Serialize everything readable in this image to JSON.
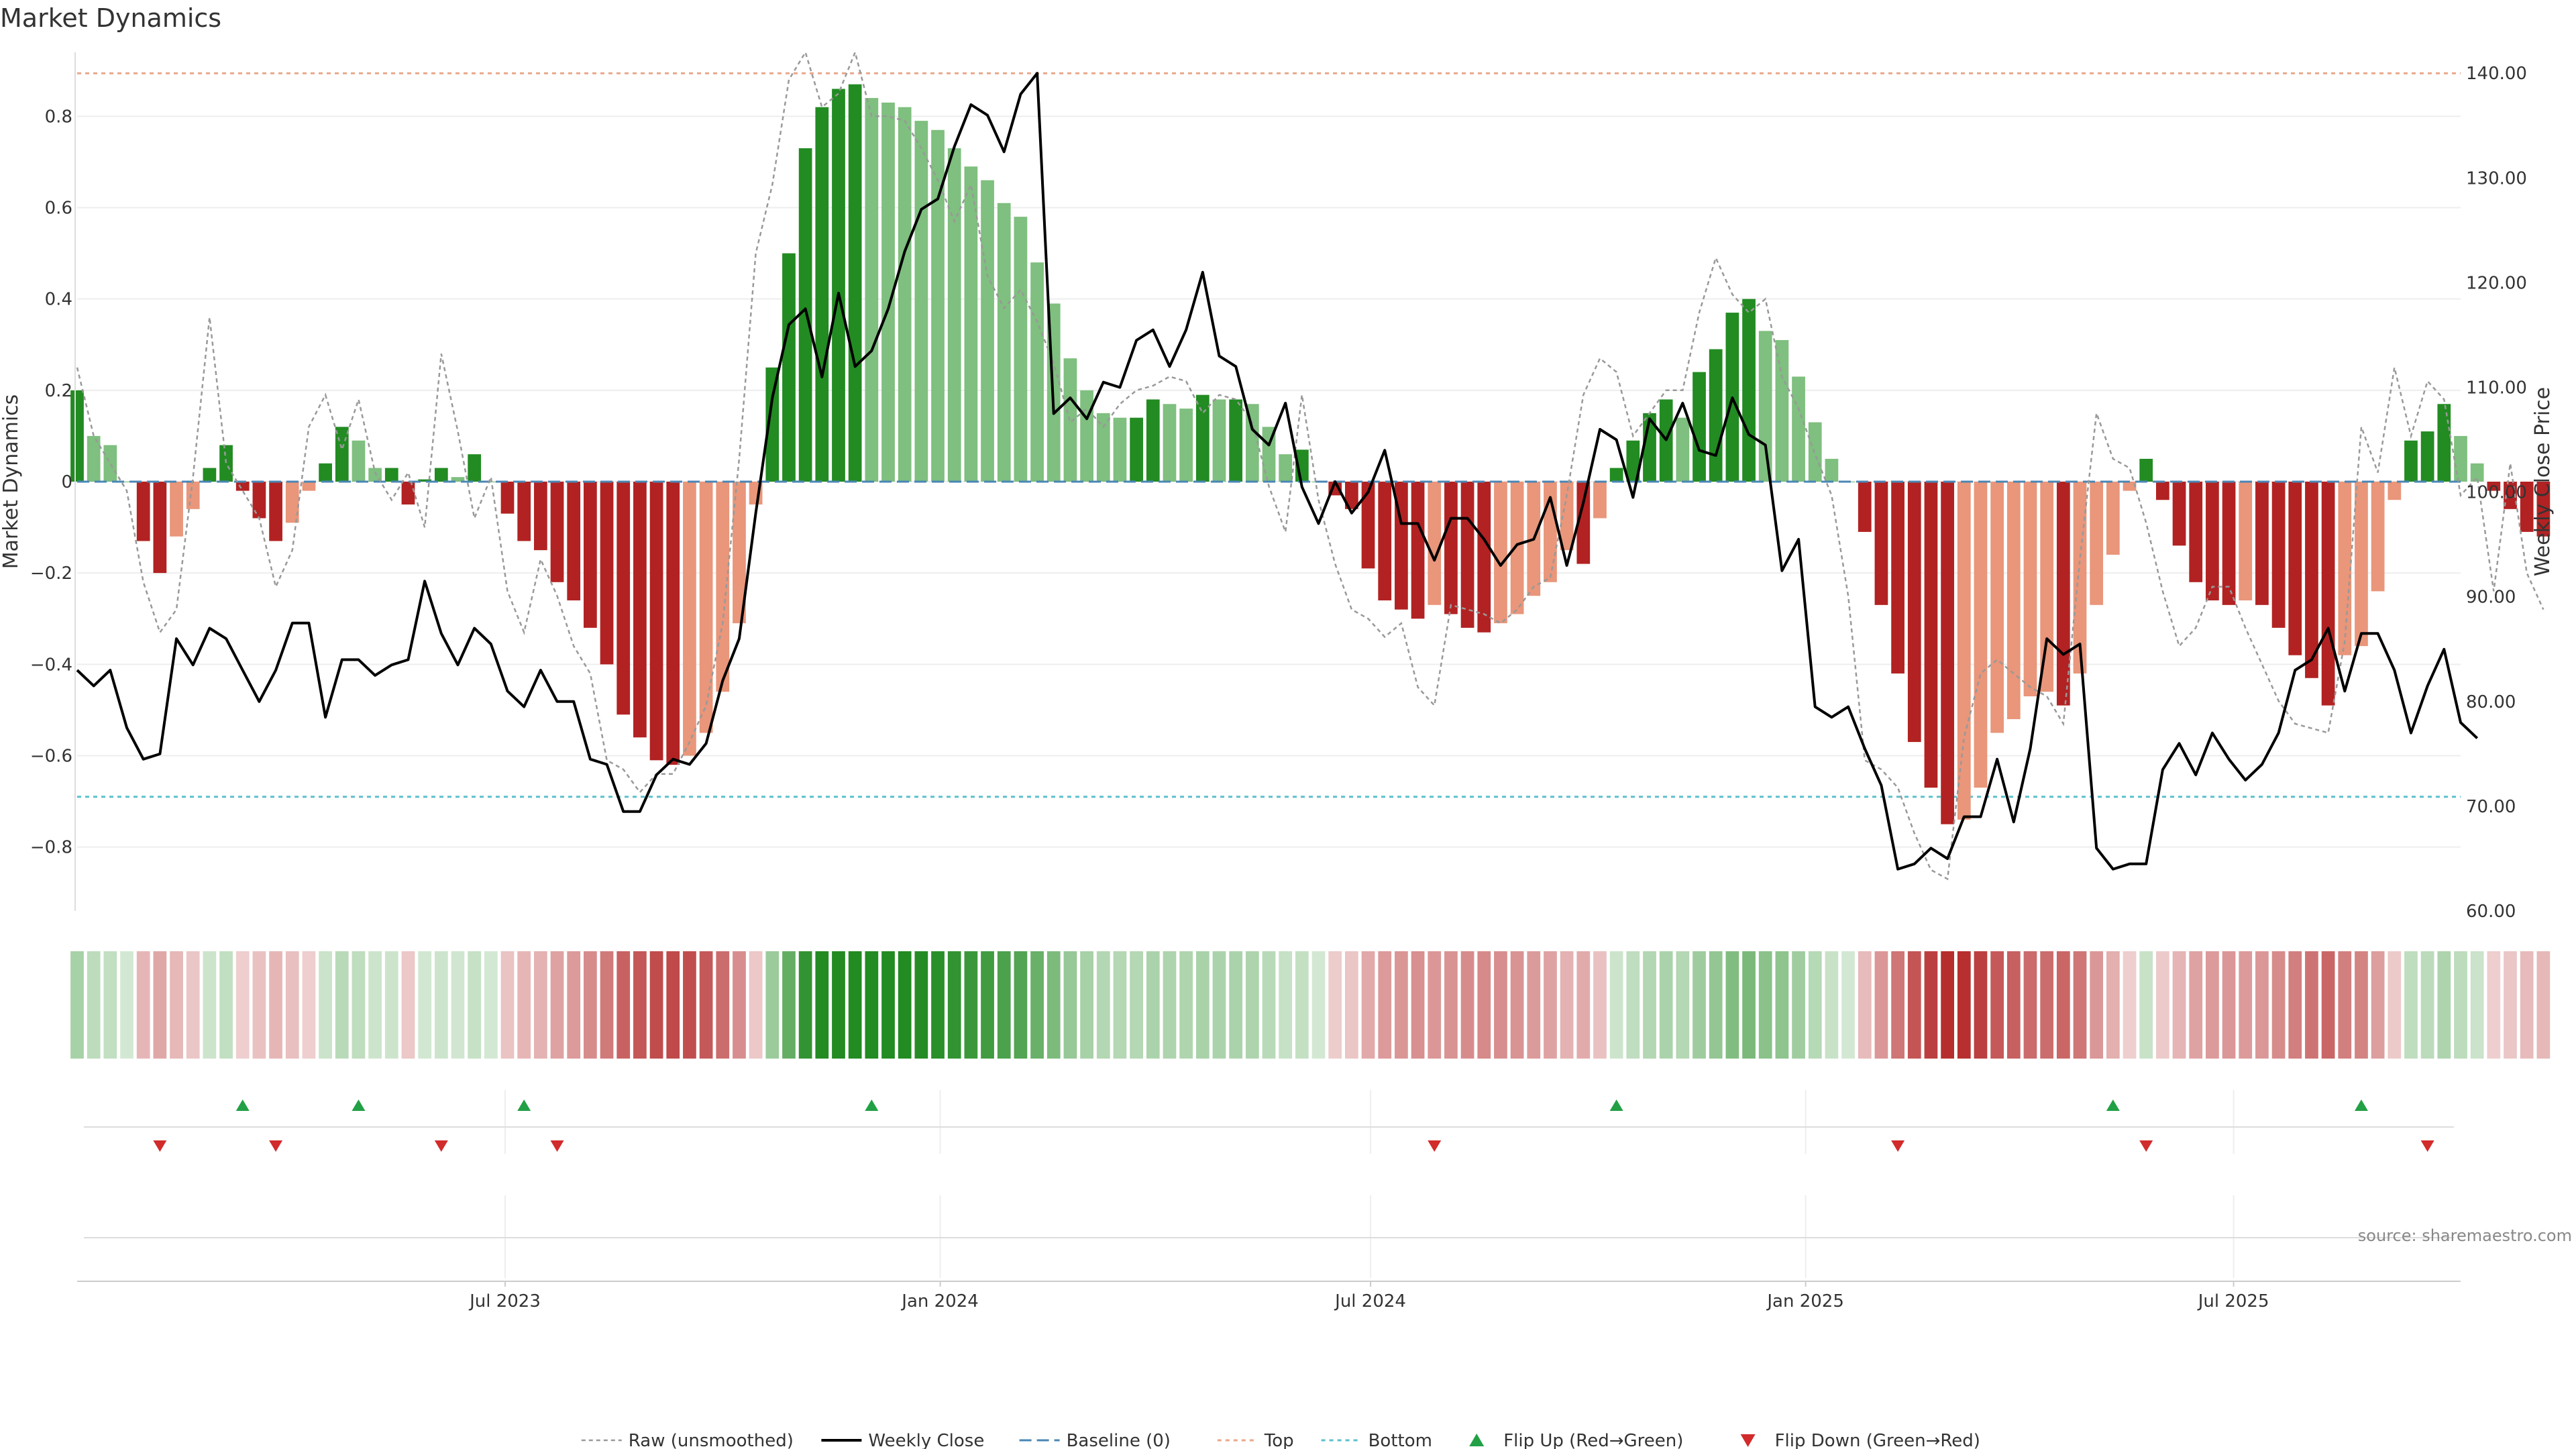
{
  "chart_data": {
    "type": "bar",
    "title": "Market Dynamics",
    "ylabel": "Market Dynamics",
    "y2label": "Weekly Close Price",
    "ylim": [
      -0.94,
      0.94
    ],
    "y2lim": [
      60,
      142
    ],
    "yticks": [
      -0.8,
      -0.6,
      -0.4,
      -0.2,
      0,
      0.2,
      0.4,
      0.6,
      0.8
    ],
    "ytick_labels": [
      "−0.8",
      "−0.6",
      "−0.4",
      "−0.2",
      "0",
      "0.2",
      "0.4",
      "0.6",
      "0.8"
    ],
    "y2ticks": [
      60,
      70,
      80,
      90,
      100,
      110,
      120,
      130,
      140
    ],
    "y2tick_labels": [
      "60.00",
      "70.00",
      "80.00",
      "90.00",
      "100.00",
      "110.00",
      "120.00",
      "130.00",
      "140.00"
    ],
    "x_range": [
      "2023-01-01",
      "2025-10-05"
    ],
    "xticks": [
      {
        "date": "2023-07-01",
        "label": "Jul 2023"
      },
      {
        "date": "2024-01-01",
        "label": "Jan 2024"
      },
      {
        "date": "2024-07-01",
        "label": "Jul 2024"
      },
      {
        "date": "2025-01-01",
        "label": "Jan 2025"
      },
      {
        "date": "2025-07-01",
        "label": "Jul 2025"
      }
    ],
    "top_level": 140,
    "bottom_level": -0.69,
    "baseline": 0,
    "first_week": "2023-01-01",
    "smoothed": [
      0.2,
      0.1,
      0.08,
      0,
      -0.13,
      -0.2,
      -0.12,
      -0.06,
      0.03,
      0.08,
      -0.02,
      -0.08,
      -0.13,
      -0.09,
      -0.02,
      0.04,
      0.12,
      0.09,
      0.03,
      0.03,
      -0.05,
      0.005,
      0.03,
      0.01,
      0.06,
      0,
      -0.07,
      -0.13,
      -0.15,
      -0.22,
      -0.26,
      -0.32,
      -0.4,
      -0.51,
      -0.56,
      -0.61,
      -0.62,
      -0.6,
      -0.55,
      -0.46,
      -0.31,
      -0.05,
      0.25,
      0.5,
      0.73,
      0.82,
      0.86,
      0.87,
      0.84,
      0.83,
      0.82,
      0.79,
      0.77,
      0.73,
      0.69,
      0.66,
      0.61,
      0.58,
      0.48,
      0.39,
      0.27,
      0.2,
      0.15,
      0.14,
      0.14,
      0.18,
      0.17,
      0.16,
      0.19,
      0.18,
      0.18,
      0.17,
      0.12,
      0.06,
      0.07,
      0,
      -0.03,
      -0.06,
      -0.19,
      -0.26,
      -0.28,
      -0.3,
      -0.27,
      -0.29,
      -0.32,
      -0.33,
      -0.31,
      -0.29,
      -0.25,
      -0.22,
      -0.15,
      -0.18,
      -0.08,
      0.03,
      0.09,
      0.15,
      0.18,
      0.14,
      0.24,
      0.29,
      0.37,
      0.4,
      0.33,
      0.31,
      0.23,
      0.13,
      0.05,
      0,
      -0.11,
      -0.27,
      -0.42,
      -0.57,
      -0.67,
      -0.75,
      -0.74,
      -0.67,
      -0.55,
      -0.52,
      -0.47,
      -0.46,
      -0.49,
      -0.42,
      -0.27,
      -0.16,
      -0.02,
      0.05,
      -0.04,
      -0.14,
      -0.22,
      -0.26,
      -0.27,
      -0.26,
      -0.27,
      -0.32,
      -0.38,
      -0.43,
      -0.49,
      -0.38,
      -0.36,
      -0.24,
      -0.04,
      0.09,
      0.11,
      0.17,
      0.1,
      0.04,
      -0.02,
      -0.06,
      -0.11,
      -0.12
    ],
    "raw": [
      0.25,
      0.1,
      0.04,
      -0.02,
      -0.22,
      -0.33,
      -0.28,
      0.01,
      0.36,
      0.04,
      -0.02,
      -0.08,
      -0.23,
      -0.15,
      0.12,
      0.19,
      0.07,
      0.18,
      0.02,
      -0.04,
      0.02,
      -0.1,
      0.28,
      0.11,
      -0.08,
      0.01,
      -0.24,
      -0.33,
      -0.17,
      -0.25,
      -0.36,
      -0.42,
      -0.61,
      -0.63,
      -0.68,
      -0.64,
      -0.64,
      -0.57,
      -0.49,
      -0.31,
      0.05,
      0.5,
      0.65,
      0.88,
      0.94,
      0.82,
      0.85,
      0.94,
      0.8,
      0.8,
      0.79,
      0.73,
      0.66,
      0.57,
      0.65,
      0.45,
      0.38,
      0.42,
      0.35,
      0.26,
      0.13,
      0.16,
      0.12,
      0.17,
      0.2,
      0.21,
      0.23,
      0.22,
      0.15,
      0.19,
      0.18,
      0.13,
      -0.01,
      -0.11,
      0.19,
      -0.04,
      -0.18,
      -0.28,
      -0.3,
      -0.34,
      -0.31,
      -0.45,
      -0.49,
      -0.27,
      -0.28,
      -0.29,
      -0.31,
      -0.28,
      -0.23,
      -0.21,
      -0.03,
      0.19,
      0.27,
      0.24,
      0.1,
      0.15,
      0.2,
      0.2,
      0.37,
      0.49,
      0.41,
      0.37,
      0.4,
      0.23,
      0.16,
      0.06,
      -0.03,
      -0.25,
      -0.61,
      -0.63,
      -0.67,
      -0.77,
      -0.85,
      -0.87,
      -0.56,
      -0.42,
      -0.39,
      -0.42,
      -0.45,
      -0.47,
      -0.53,
      -0.17,
      0.15,
      0.05,
      0.03,
      -0.09,
      -0.24,
      -0.36,
      -0.32,
      -0.23,
      -0.23,
      -0.32,
      -0.4,
      -0.48,
      -0.53,
      -0.54,
      -0.55,
      -0.35,
      0.12,
      0.02,
      0.25,
      0.1,
      0.22,
      0.18,
      -0.03,
      0.01,
      -0.24,
      0.04,
      -0.2,
      -0.28
    ],
    "close": [
      83,
      81.5,
      83,
      77.5,
      74.5,
      75,
      86,
      83.5,
      87,
      86,
      83,
      80,
      83,
      87.5,
      87.5,
      78.5,
      84,
      84,
      82.5,
      83.5,
      84,
      91.5,
      86.5,
      83.5,
      87,
      85.5,
      81,
      79.5,
      83,
      80,
      80,
      74.5,
      74,
      69.5,
      69.5,
      73,
      74.5,
      74,
      76,
      82,
      86,
      98,
      109,
      116,
      117.5,
      111,
      119,
      112,
      113.5,
      117.5,
      123,
      127,
      128,
      133,
      137,
      136,
      132.5,
      138,
      140,
      107.5,
      109,
      107,
      110.5,
      110,
      114.5,
      115.5,
      112,
      115.5,
      121,
      113,
      112,
      106,
      104.5,
      108.5,
      100.5,
      97,
      101,
      98,
      100,
      104,
      97,
      97,
      93.5,
      97.5,
      97.5,
      95.5,
      93,
      95,
      95.5,
      99.5,
      93,
      99,
      106,
      105,
      99.5,
      107,
      105,
      108.5,
      104,
      103.5,
      109,
      105.5,
      104.5,
      92.5,
      95.5,
      79.5,
      78.5,
      79.5,
      75.5,
      72,
      64,
      64.5,
      66,
      65,
      69,
      69,
      74.5,
      68.5,
      75.5,
      86,
      84.5,
      85.5,
      66,
      64,
      64.5,
      64.5,
      73.5,
      76,
      73,
      77,
      74.5,
      72.5,
      74,
      77,
      83,
      84,
      87,
      81,
      86.5,
      86.5,
      83,
      77,
      81.5,
      85,
      78,
      76.5
    ],
    "flips_up": [
      "2023-03-12",
      "2023-04-30",
      "2023-07-09",
      "2023-12-03",
      "2024-10-13",
      "2025-05-11",
      "2025-08-24"
    ],
    "flips_down": [
      "2023-02-05",
      "2023-03-26",
      "2023-06-04",
      "2023-07-23",
      "2024-07-28",
      "2025-02-09",
      "2025-05-25",
      "2025-09-21"
    ],
    "colors": {
      "strong_green": "#228b22",
      "light_green": "#7fbf7f",
      "strong_red": "#b22222",
      "light_red": "#e9967a",
      "raw_line": "#999999",
      "close_line": "#000000",
      "baseline": "#4a86b4",
      "top": "#e8a88a",
      "bottom": "#5cc0cc",
      "flip_up": "#22a045",
      "flip_down": "#d22b2b"
    },
    "legend": [
      {
        "label": "Raw (unsmoothed)",
        "kind": "raw"
      },
      {
        "label": "Weekly Close",
        "kind": "close"
      },
      {
        "label": "Baseline (0)",
        "kind": "baseline"
      },
      {
        "label": "Top",
        "kind": "top"
      },
      {
        "label": "Bottom",
        "kind": "bottom"
      },
      {
        "label": "Flip Up (Red→Green)",
        "kind": "flip_up"
      },
      {
        "label": "Flip Down (Green→Red)",
        "kind": "flip_down"
      }
    ],
    "legend_position": "bottom-center",
    "source": "source: sharemaestro.com"
  }
}
